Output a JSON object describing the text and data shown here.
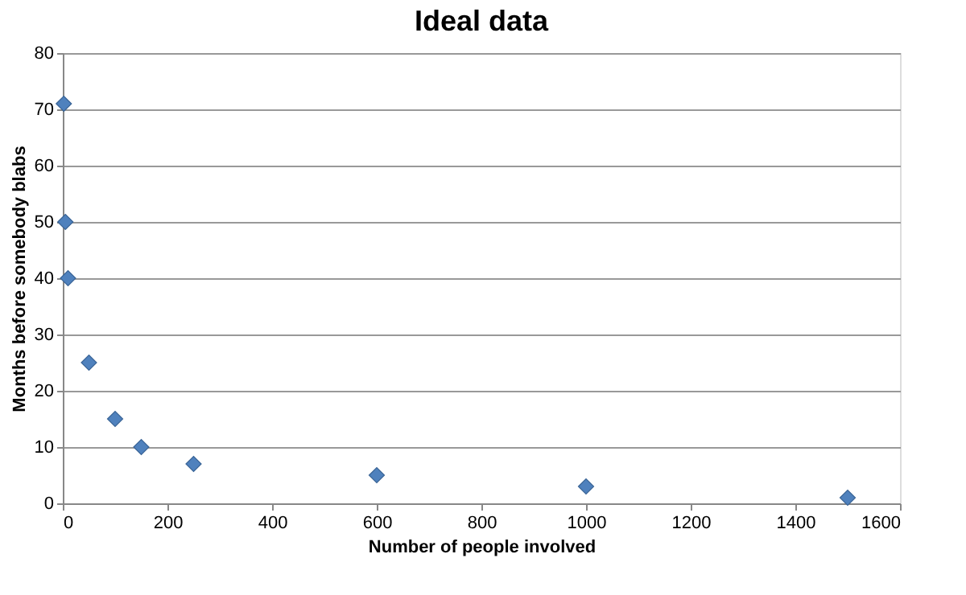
{
  "chart_data": {
    "type": "scatter",
    "title": "Ideal data",
    "xlabel": "Number of people involved",
    "ylabel": "Months before somebody blabs",
    "x": [
      2,
      5,
      10,
      50,
      100,
      150,
      250,
      600,
      1000,
      1500
    ],
    "values": [
      71,
      50,
      40,
      25,
      15,
      10,
      7,
      5,
      3,
      1
    ],
    "color": "#4f81bd",
    "marker": "diamond",
    "xlim": [
      0,
      1600
    ],
    "xticks": [
      0,
      200,
      400,
      600,
      800,
      1000,
      1200,
      1400,
      1600
    ],
    "ylim": [
      0,
      80
    ],
    "yticks": [
      0,
      10,
      20,
      30,
      40,
      50,
      60,
      70,
      80
    ],
    "grid": "y"
  }
}
